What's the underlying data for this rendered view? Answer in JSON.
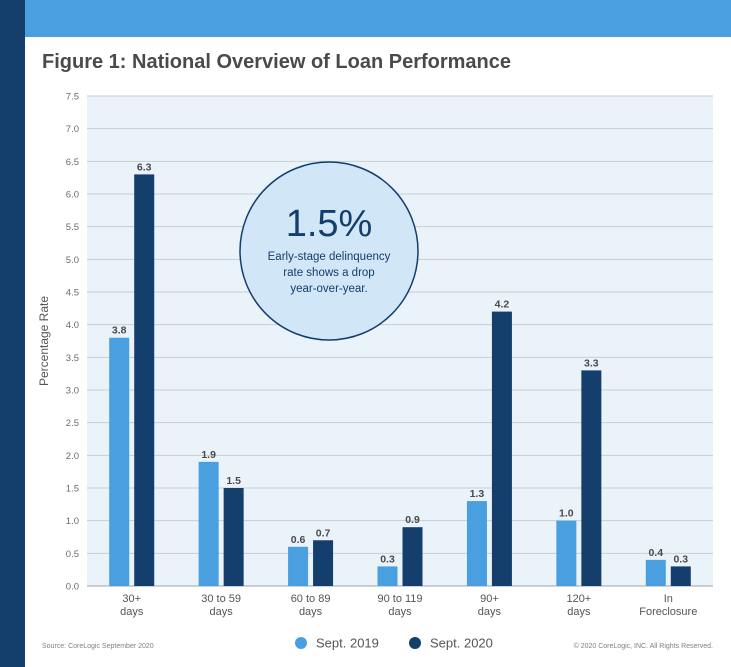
{
  "page": {
    "title": "Figure 1: National Overview of Loan Performance",
    "source": "Source: CoreLogic September 2020",
    "copyright": "© 2020 CoreLogic, INC. All Rights Reserved."
  },
  "callout": {
    "value": "1.5%",
    "line1": "Early-stage delinquency",
    "line2": "rate shows a drop",
    "line3": "year-over-year."
  },
  "colors": {
    "top_bar": "#4a9fe0",
    "side_bar": "#143e6b",
    "plot_bg": "#eaf2fa",
    "series_2019": "#4a9fe0",
    "series_2020": "#143e6b",
    "callout_fill": "#d1e6f7"
  },
  "chart_data": {
    "type": "bar",
    "title": "Figure 1: National Overview of Loan Performance",
    "xlabel": "",
    "ylabel": "Percentage Rate",
    "ylim": [
      0,
      7.5
    ],
    "yticks": [
      "0.0",
      "0.5",
      "1.0",
      "1.5",
      "2.0",
      "2.5",
      "3.0",
      "3.5",
      "4.0",
      "4.5",
      "5.0",
      "5.5",
      "6.0",
      "6.5",
      "7.0",
      "7.5"
    ],
    "grid": true,
    "legend_position": "bottom",
    "categories": [
      [
        "30+",
        "days"
      ],
      [
        "30 to 59",
        "days"
      ],
      [
        "60 to 89",
        "days"
      ],
      [
        "90 to 119",
        "days"
      ],
      [
        "90+",
        "days"
      ],
      [
        "120+",
        "days"
      ],
      [
        "In",
        "Foreclosure"
      ]
    ],
    "series": [
      {
        "name": "Sept. 2019",
        "values": [
          3.8,
          1.9,
          0.6,
          0.3,
          1.3,
          1.0,
          0.4
        ],
        "labels": [
          "3.8",
          "1.9",
          "0.6",
          "0.3",
          "1.3",
          "1.0",
          "0.4"
        ]
      },
      {
        "name": "Sept. 2020",
        "values": [
          6.3,
          1.5,
          0.7,
          0.9,
          4.2,
          3.3,
          0.3
        ],
        "labels": [
          "6.3",
          "1.5",
          "0.7",
          "0.9",
          "4.2",
          "3.3",
          "0.3"
        ]
      }
    ]
  }
}
